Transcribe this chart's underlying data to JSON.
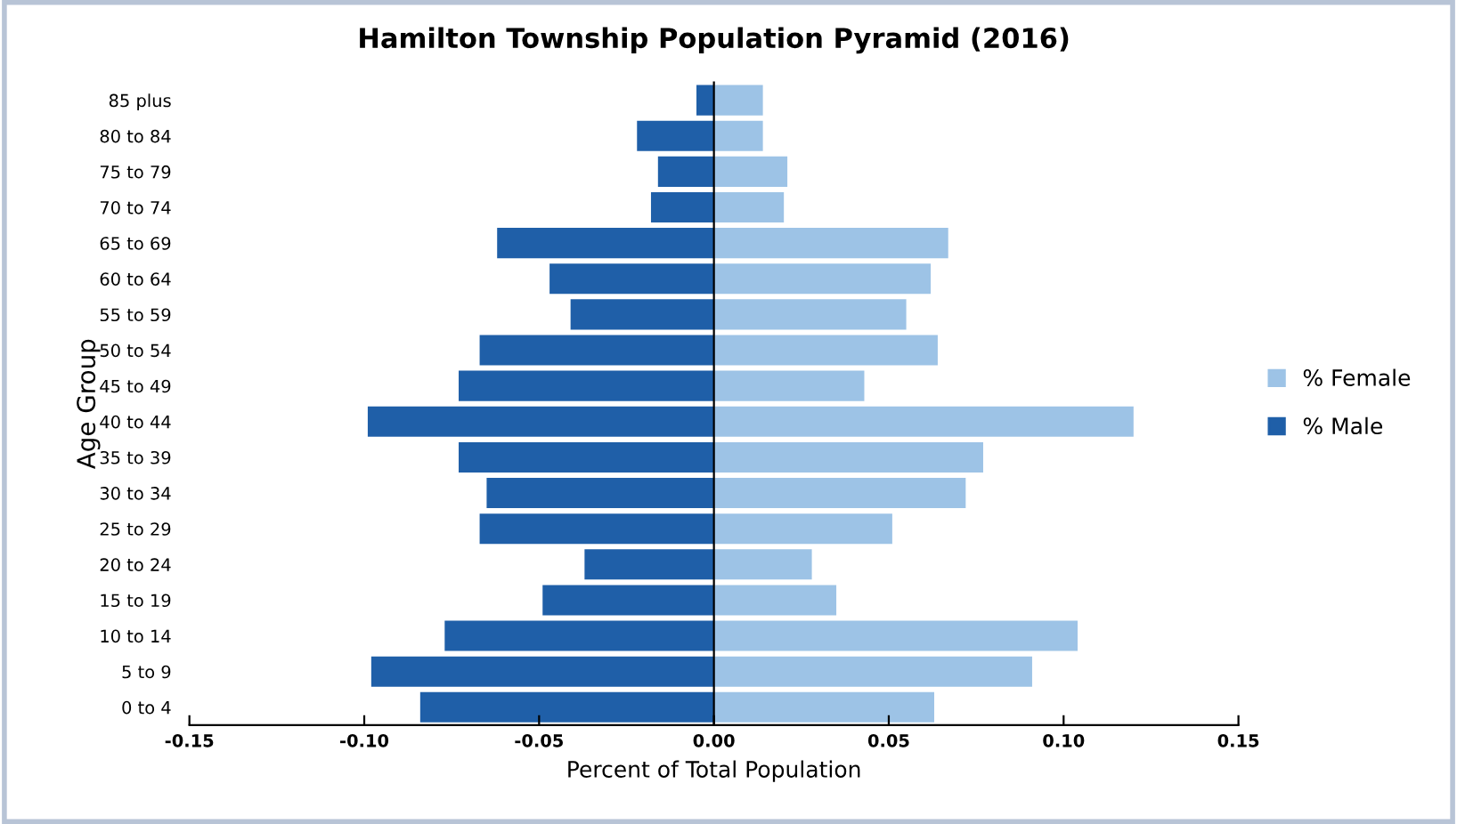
{
  "chart_data": {
    "type": "bar",
    "orientation": "horizontal",
    "title": "Hamilton Township Population Pyramid (2016)",
    "xlabel": "Percent of Total Population",
    "ylabel": "Age Group",
    "categories": [
      "85 plus",
      "80 to 84",
      "75 to 79",
      "70 to 74",
      "65 to 69",
      "60 to 64",
      "55 to 59",
      "50 to 54",
      "45 to 49",
      "40 to 44",
      "35 to 39",
      "30 to 34",
      "25 to 29",
      "20 to 24",
      "15 to 19",
      "10 to 14",
      "5 to 9",
      "0 to 4"
    ],
    "series": [
      {
        "name": "% Female",
        "color": "#9dc3e6",
        "values": [
          0.014,
          0.014,
          0.021,
          0.02,
          0.067,
          0.062,
          0.055,
          0.064,
          0.043,
          0.12,
          0.077,
          0.072,
          0.051,
          0.028,
          0.035,
          0.104,
          0.091,
          0.063
        ]
      },
      {
        "name": "% Male",
        "color": "#1f5fa8",
        "values": [
          -0.005,
          -0.022,
          -0.016,
          -0.018,
          -0.062,
          -0.047,
          -0.041,
          -0.067,
          -0.073,
          -0.099,
          -0.073,
          -0.065,
          -0.067,
          -0.037,
          -0.049,
          -0.077,
          -0.098,
          -0.084
        ]
      }
    ],
    "xlim": [
      -0.15,
      0.15
    ],
    "xticks": [
      {
        "value": -0.15,
        "label": "-0.15"
      },
      {
        "value": -0.1,
        "label": "-0.10"
      },
      {
        "value": -0.05,
        "label": "-0.05"
      },
      {
        "value": 0,
        "label": "0.00"
      },
      {
        "value": 0.05,
        "label": "0.05"
      },
      {
        "value": 0.1,
        "label": "0.10"
      },
      {
        "value": 0.15,
        "label": "0.15"
      }
    ],
    "stacked": true,
    "legend": "right"
  }
}
